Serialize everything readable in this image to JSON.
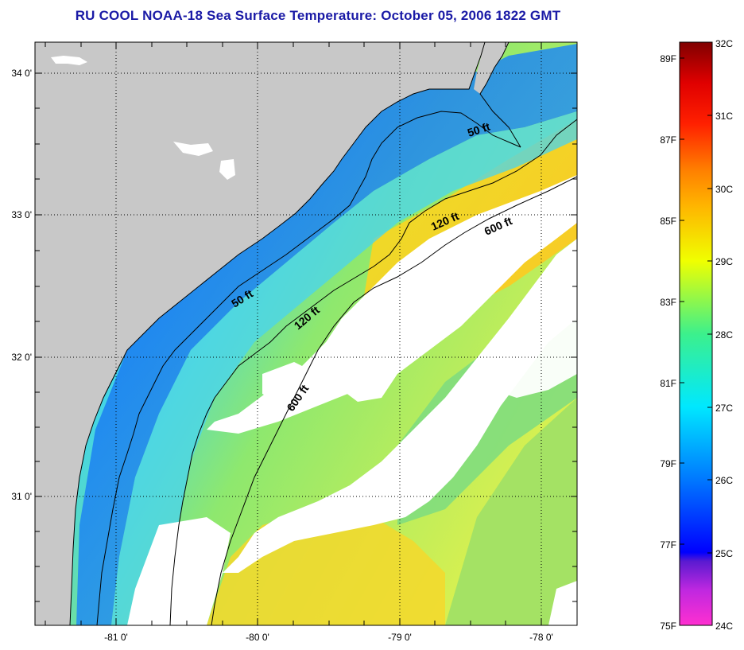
{
  "title": "RU COOL  NOAA-18  Sea Surface Temperature:  October 05, 2006 1822 GMT",
  "map": {
    "lon_labels": [
      "-81 0'",
      "-80 0'",
      "-79 0'",
      "-78 0'"
    ],
    "lat_labels": [
      "34 0'",
      "33 0'",
      "32 0'",
      "31 0'"
    ],
    "contour_labels": [
      "50 ft",
      "120 ft",
      "600 ft",
      "50 ft",
      "120 ft",
      "600 ft"
    ],
    "colors": {
      "land": "#c8c8c8",
      "cloud": "#ffffff"
    }
  },
  "colorbar": {
    "celsius": [
      "32C",
      "31C",
      "30C",
      "29C",
      "28C",
      "27C",
      "26C",
      "25C",
      "24C"
    ],
    "fahrenheit": [
      "89F",
      "87F",
      "85F",
      "83F",
      "81F",
      "79F",
      "77F",
      "75F"
    ],
    "stops": [
      "#ff2fd0",
      "#a020f0",
      "#0000ff",
      "#0078ff",
      "#00e8ff",
      "#3cf08c",
      "#f0ff00",
      "#ffb400",
      "#ff5000",
      "#ff0000",
      "#800000"
    ]
  }
}
